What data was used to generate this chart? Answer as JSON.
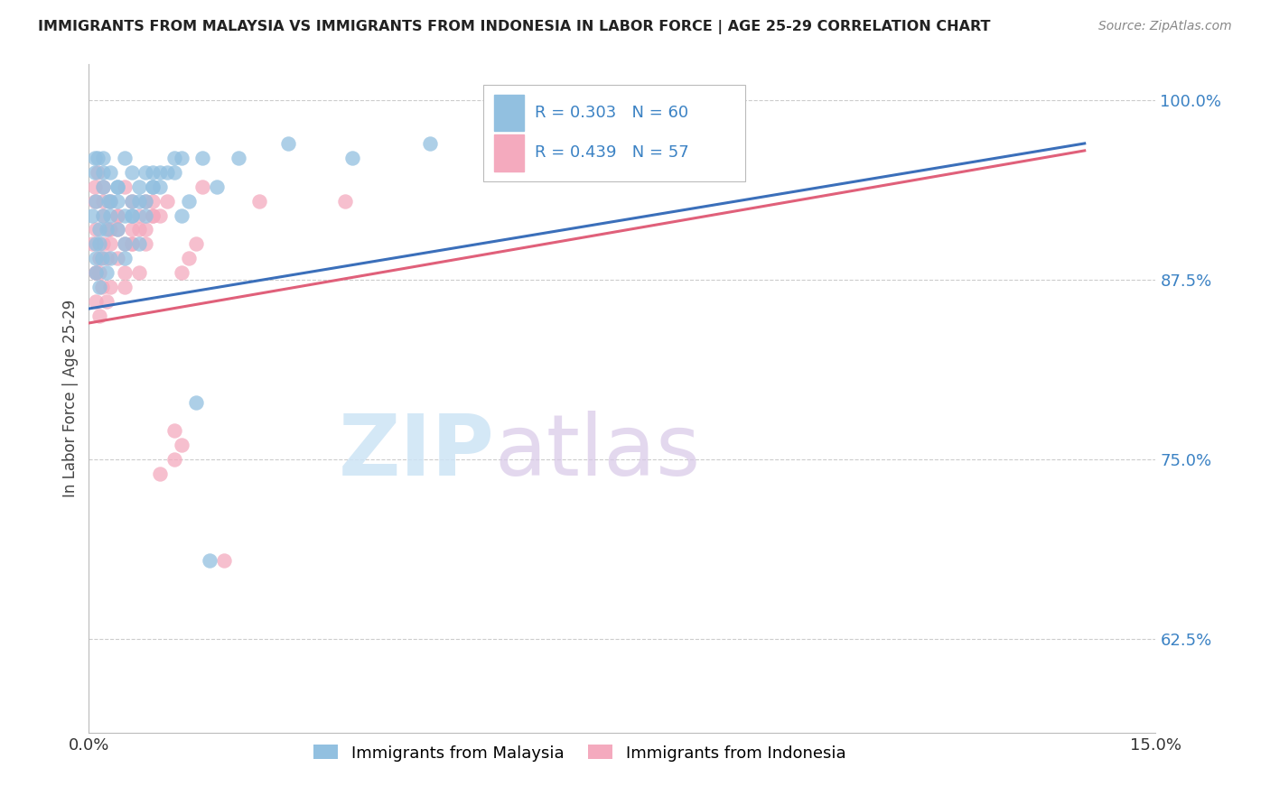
{
  "title": "IMMIGRANTS FROM MALAYSIA VS IMMIGRANTS FROM INDONESIA IN LABOR FORCE | AGE 25-29 CORRELATION CHART",
  "source": "Source: ZipAtlas.com",
  "ylabel": "In Labor Force | Age 25-29",
  "xlim": [
    0.0,
    0.15
  ],
  "ylim": [
    0.56,
    1.025
  ],
  "yticks": [
    0.625,
    0.75,
    0.875,
    1.0
  ],
  "ytick_labels": [
    "62.5%",
    "75.0%",
    "87.5%",
    "100.0%"
  ],
  "xticks": [
    0.0,
    0.15
  ],
  "xtick_labels": [
    "0.0%",
    "15.0%"
  ],
  "blue_color": "#92c0e0",
  "pink_color": "#f4aabe",
  "line_blue_color": "#3b6fba",
  "line_pink_color": "#e0607a",
  "legend_blue_label": "Immigrants from Malaysia",
  "legend_pink_label": "Immigrants from Indonesia",
  "R_blue": 0.303,
  "N_blue": 60,
  "R_pink": 0.439,
  "N_pink": 57,
  "malaysia_x": [
    0.0005,
    0.001,
    0.0008,
    0.0012,
    0.001,
    0.0015,
    0.002,
    0.001,
    0.0008,
    0.002,
    0.002,
    0.0018,
    0.0015,
    0.003,
    0.0025,
    0.002,
    0.003,
    0.0028,
    0.0015,
    0.001,
    0.004,
    0.003,
    0.004,
    0.005,
    0.003,
    0.0025,
    0.004,
    0.005,
    0.006,
    0.004,
    0.006,
    0.007,
    0.005,
    0.007,
    0.006,
    0.005,
    0.008,
    0.007,
    0.006,
    0.009,
    0.009,
    0.008,
    0.01,
    0.009,
    0.008,
    0.011,
    0.01,
    0.012,
    0.013,
    0.012,
    0.014,
    0.013,
    0.015,
    0.016,
    0.017,
    0.018,
    0.021,
    0.028,
    0.037,
    0.048
  ],
  "malaysia_y": [
    0.92,
    0.89,
    0.95,
    0.96,
    0.93,
    0.91,
    0.94,
    0.9,
    0.96,
    0.95,
    0.92,
    0.89,
    0.87,
    0.93,
    0.91,
    0.96,
    0.95,
    0.93,
    0.9,
    0.88,
    0.94,
    0.92,
    0.91,
    0.9,
    0.89,
    0.88,
    0.93,
    0.96,
    0.95,
    0.94,
    0.92,
    0.9,
    0.89,
    0.94,
    0.93,
    0.92,
    0.95,
    0.93,
    0.92,
    0.95,
    0.94,
    0.92,
    0.95,
    0.94,
    0.93,
    0.95,
    0.94,
    0.96,
    0.96,
    0.95,
    0.93,
    0.92,
    0.79,
    0.96,
    0.68,
    0.94,
    0.96,
    0.97,
    0.96,
    0.97
  ],
  "indonesia_x": [
    0.0005,
    0.001,
    0.0008,
    0.0012,
    0.001,
    0.0015,
    0.002,
    0.001,
    0.0008,
    0.002,
    0.002,
    0.0018,
    0.0015,
    0.003,
    0.0025,
    0.002,
    0.003,
    0.0028,
    0.0015,
    0.001,
    0.004,
    0.003,
    0.004,
    0.005,
    0.003,
    0.0025,
    0.004,
    0.005,
    0.006,
    0.004,
    0.006,
    0.007,
    0.005,
    0.007,
    0.006,
    0.005,
    0.008,
    0.007,
    0.006,
    0.009,
    0.009,
    0.008,
    0.01,
    0.009,
    0.008,
    0.011,
    0.01,
    0.012,
    0.013,
    0.012,
    0.015,
    0.014,
    0.013,
    0.016,
    0.019,
    0.024,
    0.036
  ],
  "indonesia_y": [
    0.9,
    0.88,
    0.93,
    0.95,
    0.91,
    0.89,
    0.92,
    0.88,
    0.94,
    0.93,
    0.9,
    0.87,
    0.85,
    0.91,
    0.89,
    0.94,
    0.93,
    0.91,
    0.88,
    0.86,
    0.92,
    0.9,
    0.89,
    0.88,
    0.87,
    0.86,
    0.91,
    0.94,
    0.93,
    0.92,
    0.9,
    0.88,
    0.87,
    0.92,
    0.91,
    0.9,
    0.93,
    0.91,
    0.9,
    0.93,
    0.92,
    0.9,
    0.74,
    0.92,
    0.91,
    0.93,
    0.92,
    0.77,
    0.76,
    0.75,
    0.9,
    0.89,
    0.88,
    0.94,
    0.68,
    0.93,
    0.93
  ],
  "watermark_zip": "ZIP",
  "watermark_atlas": "atlas",
  "background_color": "#ffffff",
  "grid_color": "#cccccc"
}
